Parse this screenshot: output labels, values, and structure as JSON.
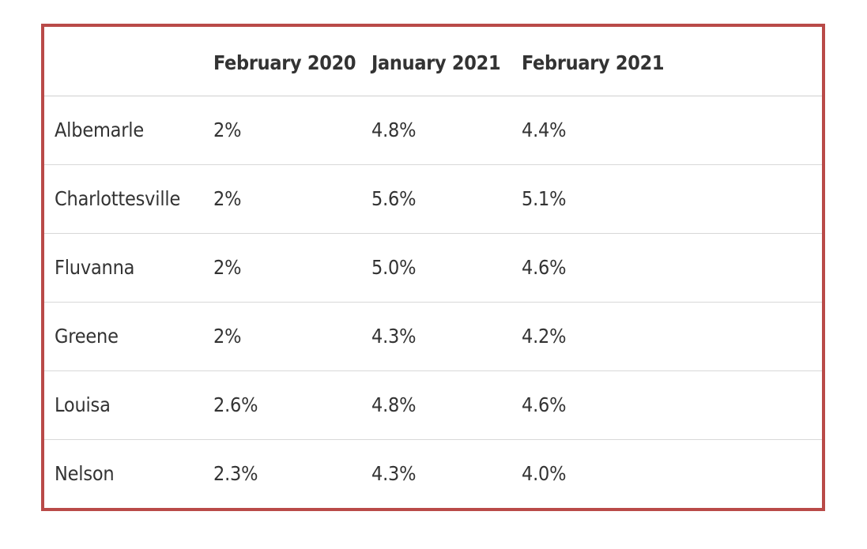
{
  "table": {
    "columns": [
      "",
      "February 2020",
      "January 2021",
      "February 2021"
    ],
    "rows": [
      {
        "name": "Albemarle",
        "values": [
          "2%",
          "4.8%",
          "4.4%"
        ]
      },
      {
        "name": "Charlottesville",
        "values": [
          "2%",
          "5.6%",
          "5.1%"
        ]
      },
      {
        "name": "Fluvanna",
        "values": [
          "2%",
          "5.0%",
          "4.6%"
        ]
      },
      {
        "name": "Greene",
        "values": [
          "2%",
          "4.3%",
          "4.2%"
        ]
      },
      {
        "name": "Louisa",
        "values": [
          "2.6%",
          "4.8%",
          "4.6%"
        ]
      },
      {
        "name": "Nelson",
        "values": [
          "2.3%",
          "4.3%",
          "4.0%"
        ]
      }
    ]
  },
  "colors": {
    "border": "#b94a48",
    "text": "#333333",
    "row_divider": "#d8d8d8"
  }
}
